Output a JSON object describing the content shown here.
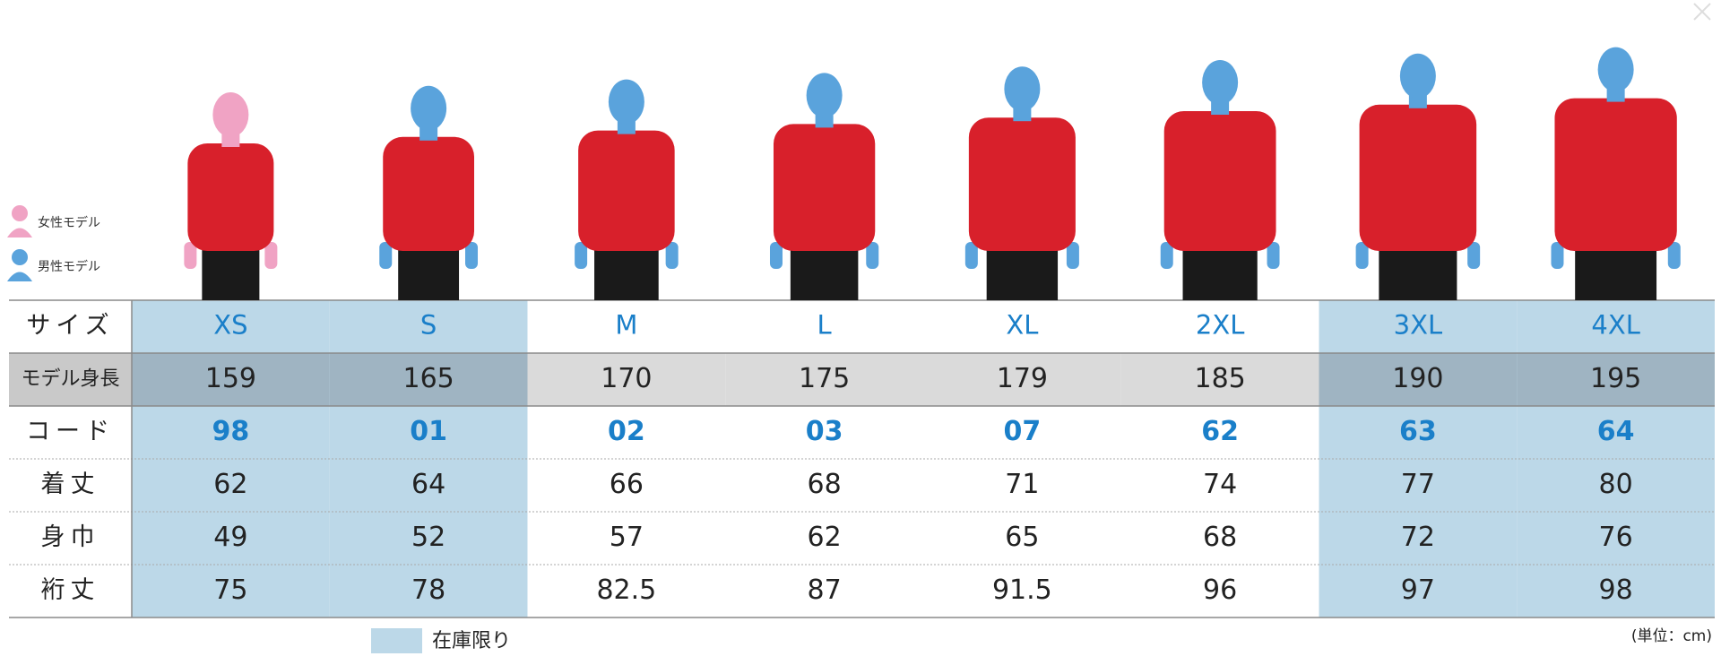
{
  "legend": {
    "female": "女性モデル",
    "male": "男性モデル",
    "stock": "在庫限り",
    "unit": "(単位：cm)"
  },
  "table": {
    "row_labels": [
      "サイズ",
      "モデル身長",
      "コード",
      "着丈",
      "身巾",
      "裄丈"
    ],
    "sizes": [
      "XS",
      "S",
      "M",
      "L",
      "XL",
      "2XL",
      "3XL",
      "4XL"
    ],
    "rows": [
      [
        159,
        165,
        170,
        175,
        179,
        185,
        190,
        195
      ],
      [
        "98",
        "01",
        "02",
        "03",
        "07",
        "62",
        "63",
        "64"
      ],
      [
        62,
        64,
        66,
        68,
        71,
        74,
        77,
        80
      ],
      [
        49,
        52,
        57,
        62,
        65,
        68,
        72,
        76
      ],
      [
        75,
        78,
        82.5,
        87,
        91.5,
        96,
        97,
        98
      ]
    ]
  }
}
